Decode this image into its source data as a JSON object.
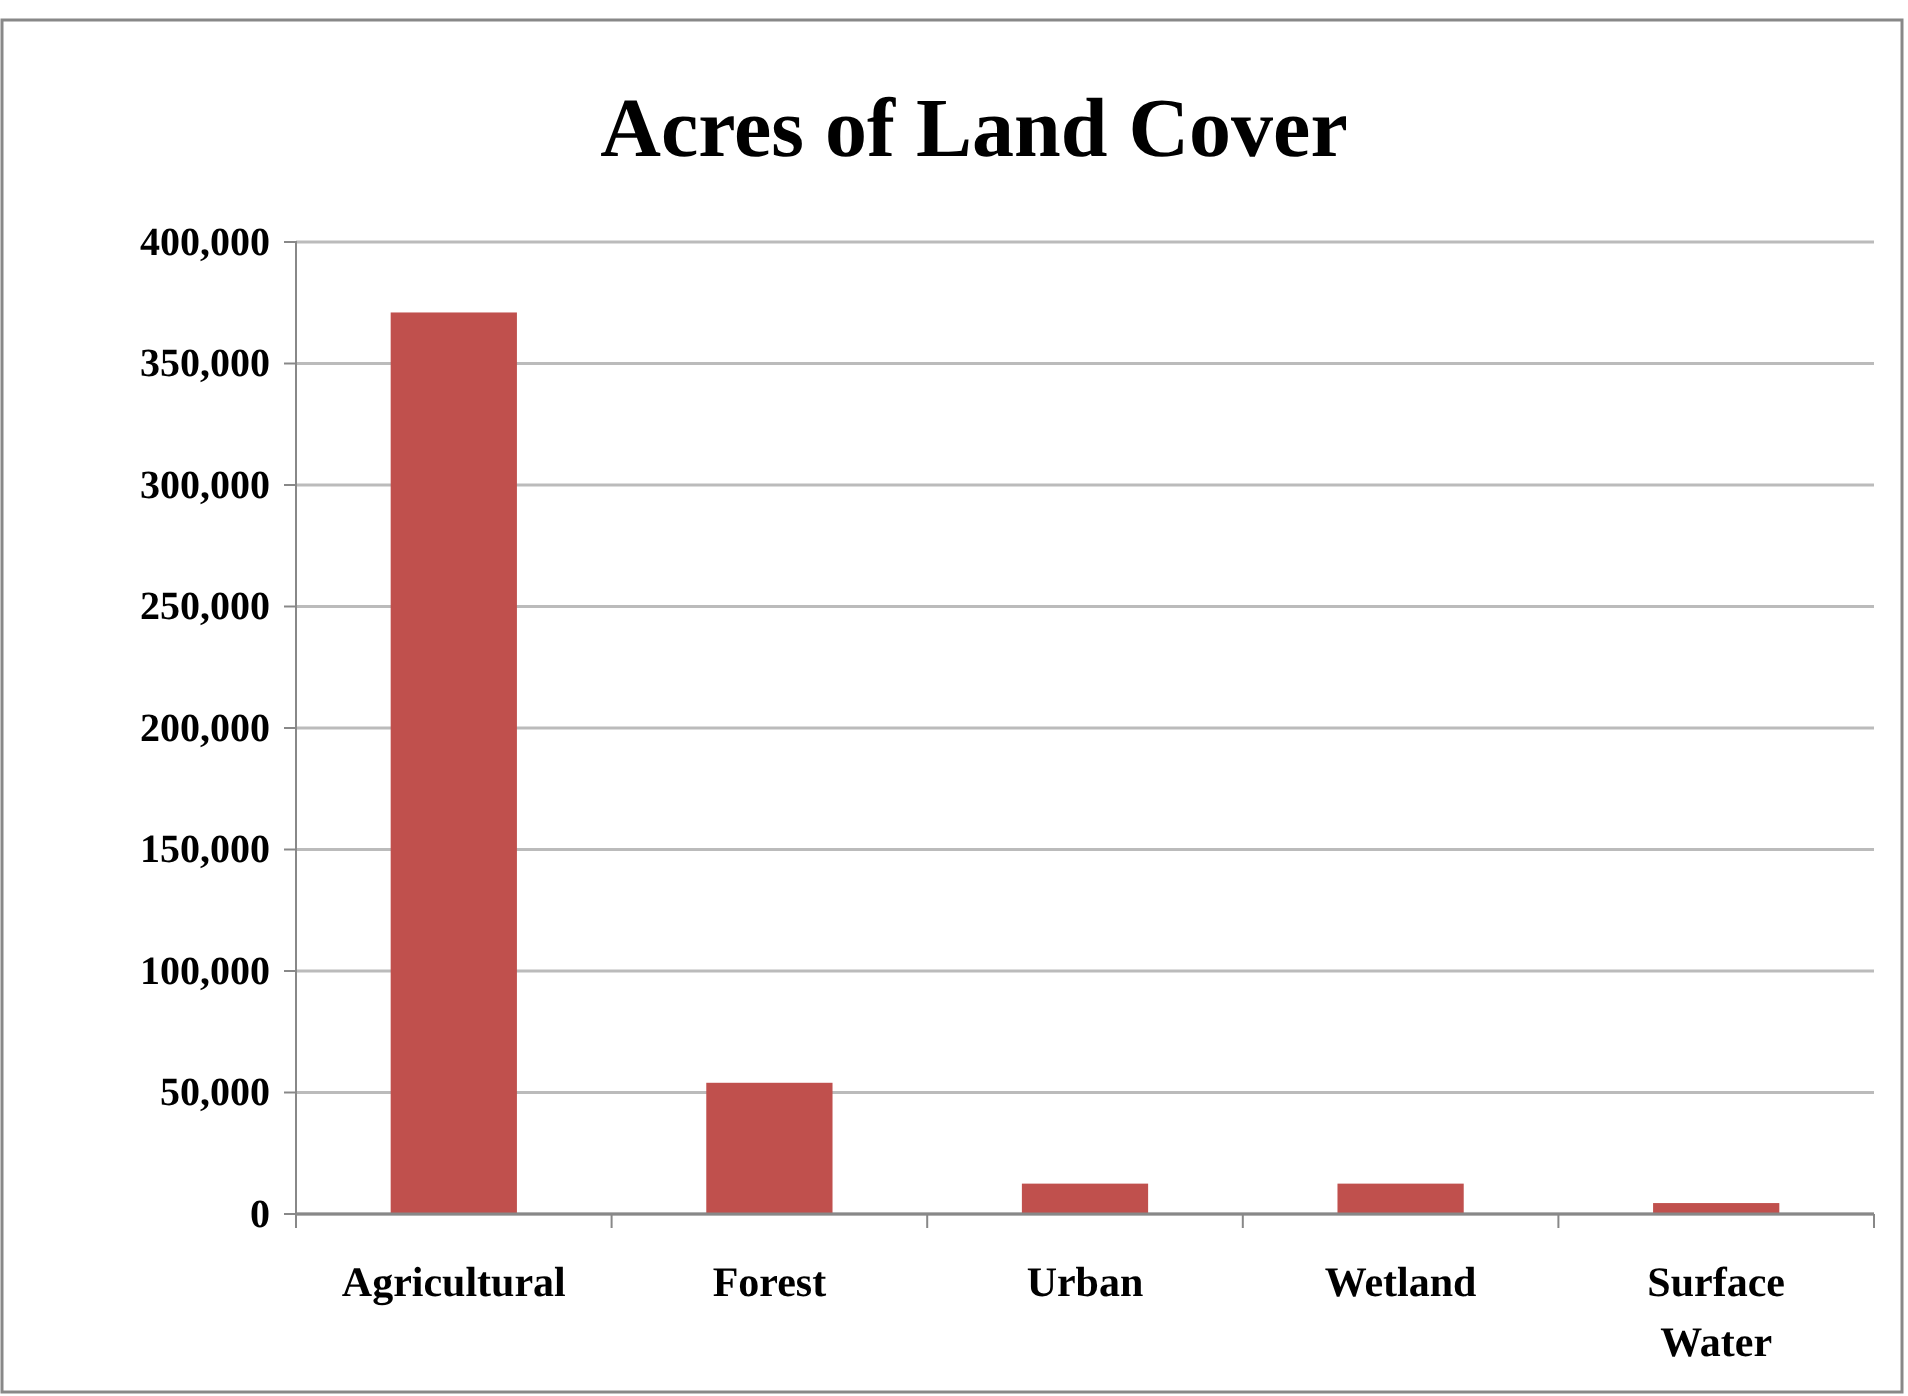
{
  "chart_data": {
    "type": "bar",
    "title": "Acres of Land Cover",
    "categories": [
      "Agricultural",
      "Forest",
      "Urban",
      "Wetland",
      "Surface Water"
    ],
    "values": [
      371000,
      54000,
      12500,
      12500,
      4500
    ],
    "color": "#c0504d",
    "ylim": [
      0,
      400000
    ],
    "yticks": [
      {
        "value": 0,
        "label": "0"
      },
      {
        "value": 50000,
        "label": "50,000"
      },
      {
        "value": 100000,
        "label": "100,000"
      },
      {
        "value": 150000,
        "label": "150,000"
      },
      {
        "value": 200000,
        "label": "200,000"
      },
      {
        "value": 250000,
        "label": "250,000"
      },
      {
        "value": 300000,
        "label": "300,000"
      },
      {
        "value": 350000,
        "label": "350,000"
      },
      {
        "value": 400000,
        "label": "400,000"
      }
    ],
    "grid": "y"
  }
}
